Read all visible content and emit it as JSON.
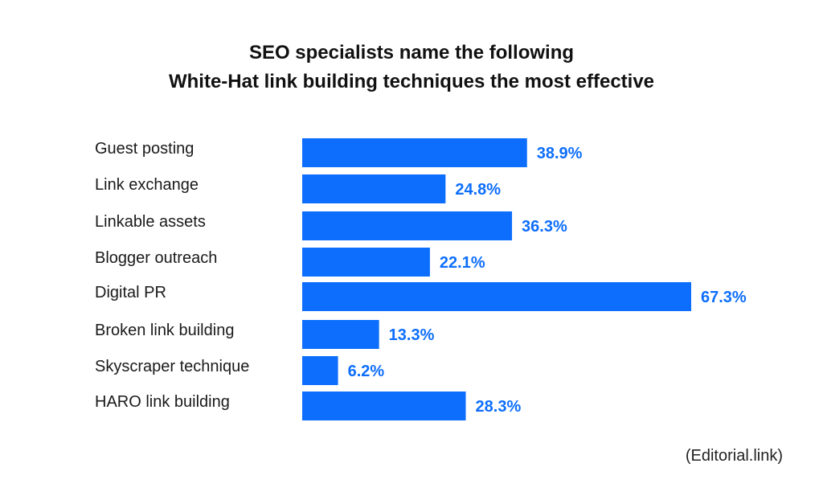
{
  "title_line1": "SEO specialists name the following",
  "title_line2": "White-Hat link building techniques the most effective",
  "source": "(Editorial.link)",
  "colors": {
    "bar": "#0d6efd",
    "value_label": "#0d6efd"
  },
  "chart_data": {
    "type": "bar",
    "orientation": "horizontal",
    "title": "SEO specialists name the following White-Hat link building techniques the most effective",
    "categories": [
      "Guest posting",
      "Link exchange",
      "Linkable assets",
      "Blogger outreach",
      "Digital PR",
      "Broken link building",
      "Skyscraper technique",
      "HARO link building"
    ],
    "values": [
      38.9,
      24.8,
      36.3,
      22.1,
      67.3,
      13.3,
      6.2,
      28.3
    ],
    "value_labels": [
      "38.9%",
      "24.8%",
      "36.3%",
      "22.1%",
      "67.3%",
      "13.3%",
      "6.2%",
      "28.3%"
    ],
    "unit": "%",
    "xlim": [
      0,
      67.3
    ],
    "grid": false,
    "legend": "none"
  }
}
